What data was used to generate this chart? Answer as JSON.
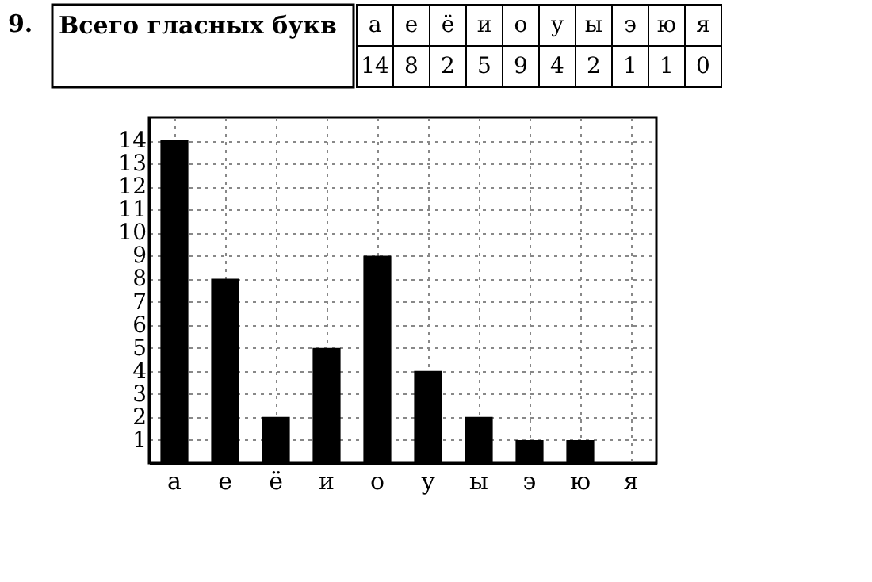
{
  "chart_data": [
    {
      "type": "other",
      "title": "Всего гласных букв",
      "annotations": [
        "9."
      ],
      "categories": [
        "а",
        "е",
        "ё",
        "и",
        "о",
        "у",
        "ы",
        "э",
        "ю",
        "я"
      ],
      "values": [
        14,
        8,
        2,
        5,
        9,
        4,
        2,
        1,
        1,
        0
      ],
      "data_labels": true
    },
    {
      "type": "bar",
      "categories": [
        "а",
        "е",
        "ё",
        "и",
        "о",
        "у",
        "ы",
        "э",
        "ю",
        "я"
      ],
      "values": [
        14,
        8,
        2,
        5,
        9,
        4,
        2,
        1,
        1,
        0
      ],
      "color": "#000000",
      "ylim": [
        0,
        15
      ],
      "yticks": [
        1,
        2,
        3,
        4,
        5,
        6,
        7,
        8,
        9,
        10,
        11,
        12,
        13,
        14
      ],
      "grid": true
    }
  ]
}
